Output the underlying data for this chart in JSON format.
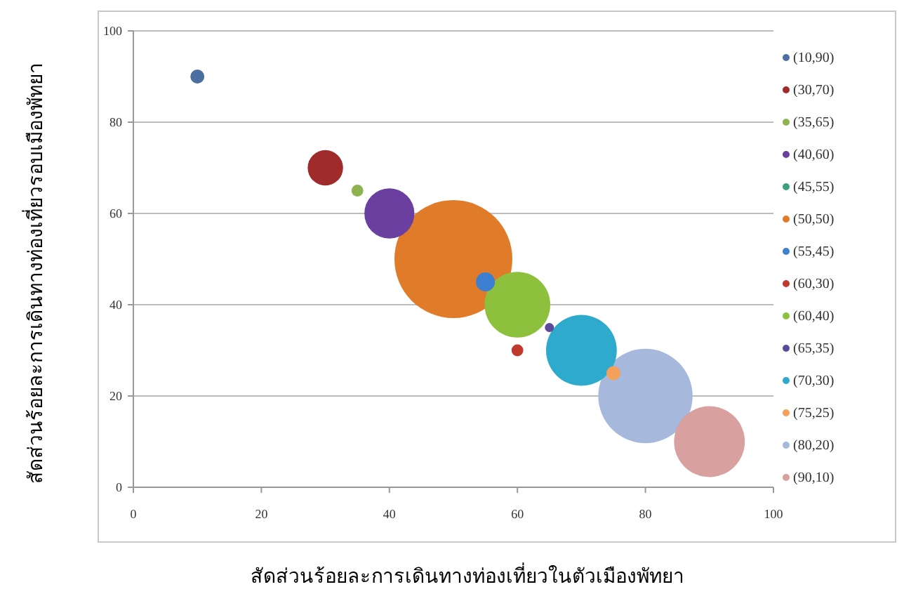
{
  "chart_data": {
    "type": "bubble",
    "xlabel": "สัดส่วนร้อยละการเดินทางท่องเที่ยวในตัวเมืองพัทยา",
    "ylabel": "สัดส่วนร้อยละการเดินทางท่องเที่ยวรอบเมืองพัทยา",
    "xlim": [
      0,
      100
    ],
    "ylim": [
      0,
      100
    ],
    "xticks": [
      0,
      20,
      40,
      60,
      80,
      100
    ],
    "yticks": [
      0,
      20,
      40,
      60,
      80,
      100
    ],
    "grid": "y",
    "legend": "right",
    "series": [
      {
        "name": "(10,90)",
        "color": "#4a6fa0",
        "x": [
          10
        ],
        "values": [
          90
        ],
        "sizes": [
          0.014
        ]
      },
      {
        "name": "(30,70)",
        "color": "#a02b2b",
        "x": [
          30
        ],
        "values": [
          70
        ],
        "sizes": [
          0.09
        ]
      },
      {
        "name": "(35,65)",
        "color": "#8db450",
        "x": [
          35
        ],
        "values": [
          65
        ],
        "sizes": [
          0.01
        ]
      },
      {
        "name": "(40,60)",
        "color": "#6a3fa0",
        "x": [
          40
        ],
        "values": [
          60
        ],
        "sizes": [
          0.18
        ]
      },
      {
        "name": "(45,55)",
        "color": "#3aa080",
        "values": [
          null
        ]
      },
      {
        "name": "(50,50)",
        "color": "#e07b2a",
        "x": [
          50
        ],
        "values": [
          50
        ],
        "sizes": [
          1
        ]
      },
      {
        "name": "(55,45)",
        "color": "#3c7fd0",
        "x": [
          55
        ],
        "values": [
          45
        ],
        "sizes": [
          0.026
        ]
      },
      {
        "name": "(60,30)",
        "color": "#c0392b",
        "x": [
          60
        ],
        "values": [
          30
        ],
        "sizes": [
          0.01
        ]
      },
      {
        "name": "(60,40)",
        "color": "#8dc03c",
        "x": [
          60
        ],
        "values": [
          40
        ],
        "sizes": [
          0.31
        ]
      },
      {
        "name": "(65,35)",
        "color": "#5b4a9a",
        "x": [
          65
        ],
        "values": [
          35
        ],
        "sizes": [
          0.006
        ]
      },
      {
        "name": "(70,30)",
        "color": "#2eaacc",
        "x": [
          70
        ],
        "values": [
          30
        ],
        "sizes": [
          0.36
        ]
      },
      {
        "name": "(75,25)",
        "color": "#f5a05a",
        "x": [
          75
        ],
        "values": [
          25
        ],
        "sizes": [
          0.014
        ]
      },
      {
        "name": "(80,20)",
        "color": "#a6b8dc",
        "x": [
          80
        ],
        "values": [
          20
        ],
        "sizes": [
          0.64
        ]
      },
      {
        "name": "(90,10)",
        "color": "#d9a0a0",
        "x": [
          90
        ],
        "values": [
          10
        ],
        "sizes": [
          0.36
        ]
      }
    ]
  }
}
